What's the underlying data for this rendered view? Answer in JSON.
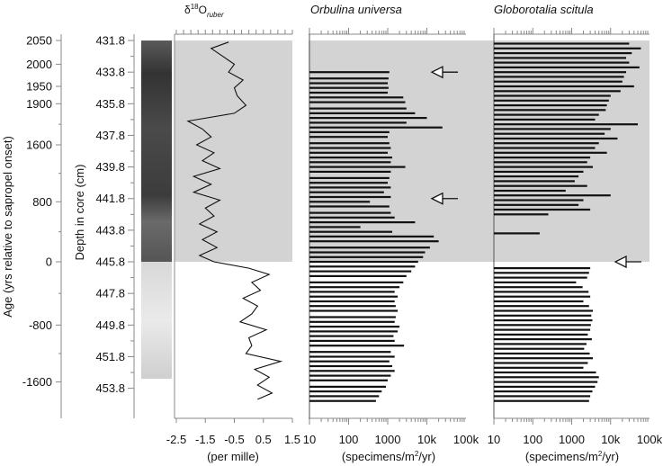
{
  "chart_data": {
    "type": "bar",
    "age_axis": {
      "label": "Age (yrs relative to sapropel onset)",
      "ticks": [
        2050,
        2000,
        1950,
        1900,
        1600,
        800,
        0,
        -800,
        -1600
      ],
      "tick_labels": [
        "2050",
        "2000",
        "1950",
        "1900",
        "1600",
        "800",
        "0",
        "-800",
        "-1600"
      ],
      "tick_depths": [
        431.8,
        433.3,
        434.7,
        435.8,
        438.4,
        442.0,
        445.8,
        449.8,
        453.4
      ]
    },
    "depth_axis": {
      "label": "Depth in core (cm)",
      "ticks": [
        431.8,
        433.8,
        435.8,
        437.8,
        439.8,
        441.8,
        443.8,
        445.8,
        447.8,
        449.8,
        451.8,
        453.8
      ],
      "tick_labels": [
        "431.8",
        "433.8",
        "435.8",
        "437.8",
        "439.8",
        "441.8",
        "443.8",
        "445.8",
        "447.8",
        "449.8",
        "451.8",
        "453.8"
      ],
      "range": [
        431.4,
        455.7
      ]
    },
    "sapropel_interval": [
      431.8,
      445.8
    ],
    "core_photo": {
      "darker_interval": [
        431.8,
        445.8
      ],
      "paler_interval": [
        445.8,
        453.2
      ]
    },
    "d18o": {
      "title_main": "δ",
      "title_sup": "18",
      "title_o": "O",
      "title_sub": "ruber",
      "xlabel": "(per mille)",
      "xlim": [
        -2.5,
        1.5
      ],
      "tick_labels": [
        "-2.5",
        "-1.5",
        "-0.5",
        "0.5",
        "1.5"
      ],
      "depth": [
        431.9,
        432.3,
        432.8,
        433.3,
        433.8,
        434.3,
        434.8,
        435.3,
        435.9,
        436.4,
        436.9,
        437.4,
        437.9,
        438.4,
        438.9,
        439.4,
        439.9,
        440.4,
        440.9,
        441.4,
        441.9,
        442.4,
        442.9,
        443.4,
        443.9,
        444.4,
        444.9,
        445.4,
        445.8,
        446.2,
        446.6,
        447.1,
        447.6,
        448.1,
        448.6,
        449.1,
        449.6,
        450.1,
        450.6,
        451.1,
        451.6,
        452.1,
        452.6,
        453.1,
        453.6,
        454.1,
        454.5
      ],
      "values": [
        -0.7,
        -1.3,
        -0.9,
        -0.5,
        -0.7,
        -0.2,
        -0.5,
        -0.4,
        -0.1,
        -0.5,
        -2.1,
        -1.6,
        -1.3,
        -1.8,
        -1.2,
        -1.6,
        -1.0,
        -1.9,
        -1.3,
        -1.9,
        -1.0,
        -1.5,
        -1.2,
        -1.7,
        -1.1,
        -1.6,
        -1.1,
        -1.7,
        -1.2,
        0.0,
        0.7,
        0.1,
        0.4,
        -0.2,
        0.3,
        0.1,
        -0.3,
        0.6,
        0.0,
        0.1,
        -0.1,
        1.1,
        0.2,
        0.7,
        0.3,
        0.8,
        0.3
      ]
    },
    "orbulina": {
      "title": "Orbulina universa",
      "xlabel_pre": "(specimens/m",
      "xlabel_sup": "2",
      "xlabel_post": "/yr)",
      "scale": "log",
      "xlim": [
        10,
        100000
      ],
      "tick_labels": [
        "10",
        "100",
        "1000",
        "10k",
        "100k"
      ],
      "depth": [
        433.8,
        434.2,
        434.5,
        434.8,
        435.1,
        435.4,
        435.7,
        436.1,
        436.4,
        436.7,
        437.0,
        437.3,
        437.6,
        437.9,
        438.3,
        438.6,
        438.9,
        439.2,
        439.5,
        439.8,
        440.1,
        440.5,
        440.8,
        441.1,
        441.4,
        441.7,
        442.0,
        442.3,
        442.7,
        443.0,
        443.3,
        443.6,
        443.9,
        444.2,
        444.5,
        444.9,
        445.2,
        445.5,
        445.8,
        446.1,
        446.4,
        446.7,
        447.1,
        447.4,
        447.7,
        448.0,
        448.3,
        448.6,
        448.9,
        449.3,
        449.6,
        449.9,
        450.2,
        450.5,
        450.8,
        451.1,
        451.5,
        451.8,
        452.1,
        452.4,
        452.7,
        453.0,
        453.3,
        453.7,
        454.0,
        454.3,
        454.6
      ],
      "values": [
        1100,
        1050,
        1000,
        1050,
        1000,
        2500,
        2800,
        3000,
        5000,
        10000,
        3000,
        25000,
        1100,
        1000,
        1100,
        1200,
        1000,
        1300,
        1200,
        2800,
        1200,
        1100,
        1000,
        1200,
        800,
        1200,
        350,
        1100,
        1200,
        1500,
        5000,
        200,
        1300,
        15000,
        20000,
        12000,
        9000,
        8000,
        6000,
        5000,
        4000,
        3000,
        2500,
        2000,
        1500,
        1800,
        1500,
        1600,
        1800,
        1600,
        1500,
        2000,
        1800,
        1400,
        1500,
        2600,
        1200,
        1500,
        1100,
        1300,
        1500,
        1200,
        1000,
        900,
        700,
        600,
        500
      ],
      "arrow_depths": [
        433.8,
        441.8
      ]
    },
    "globorotalia": {
      "title": "Globorotalia scitula",
      "xlabel_pre": "(specimens/m",
      "xlabel_sup": "2",
      "xlabel_post": "/yr)",
      "scale": "log",
      "xlim": [
        10,
        100000
      ],
      "tick_labels": [
        "10",
        "100",
        "1000",
        "10k",
        "100k"
      ],
      "depth": [
        432.0,
        432.3,
        432.6,
        432.9,
        433.2,
        433.5,
        433.8,
        434.1,
        434.4,
        434.7,
        435.0,
        435.3,
        435.6,
        435.9,
        436.2,
        436.5,
        436.8,
        437.1,
        437.4,
        437.7,
        438.0,
        438.3,
        438.6,
        438.9,
        439.2,
        439.5,
        439.8,
        440.1,
        440.4,
        440.7,
        441.0,
        441.3,
        441.6,
        441.9,
        442.2,
        442.5,
        442.8,
        444.0,
        446.2,
        446.5,
        446.8,
        447.1,
        447.4,
        447.7,
        448.0,
        448.3,
        448.6,
        448.9,
        449.2,
        449.5,
        449.8,
        450.1,
        450.4,
        450.7,
        451.0,
        451.3,
        451.6,
        451.9,
        452.2,
        452.5,
        452.8,
        453.1,
        453.4,
        453.7,
        454.0,
        454.3,
        454.6
      ],
      "values": [
        30000,
        60000,
        35000,
        25000,
        30000,
        55000,
        25000,
        22000,
        20000,
        40000,
        18000,
        10000,
        9000,
        8000,
        7500,
        5000,
        4000,
        50000,
        10000,
        7000,
        15000,
        5000,
        4000,
        8000,
        3000,
        2500,
        3500,
        2000,
        1500,
        1200,
        2500,
        700,
        10000,
        2000,
        1500,
        3000,
        250,
        150,
        3000,
        2800,
        2500,
        1300,
        1900,
        2700,
        3000,
        2000,
        2800,
        3500,
        3200,
        3400,
        3100,
        3000,
        2600,
        3300,
        2400,
        2100,
        2900,
        3500,
        2600,
        2000,
        4200,
        5000,
        4600,
        4000,
        3400,
        3000,
        2800
      ],
      "arrow_depths": [
        445.8
      ]
    }
  }
}
